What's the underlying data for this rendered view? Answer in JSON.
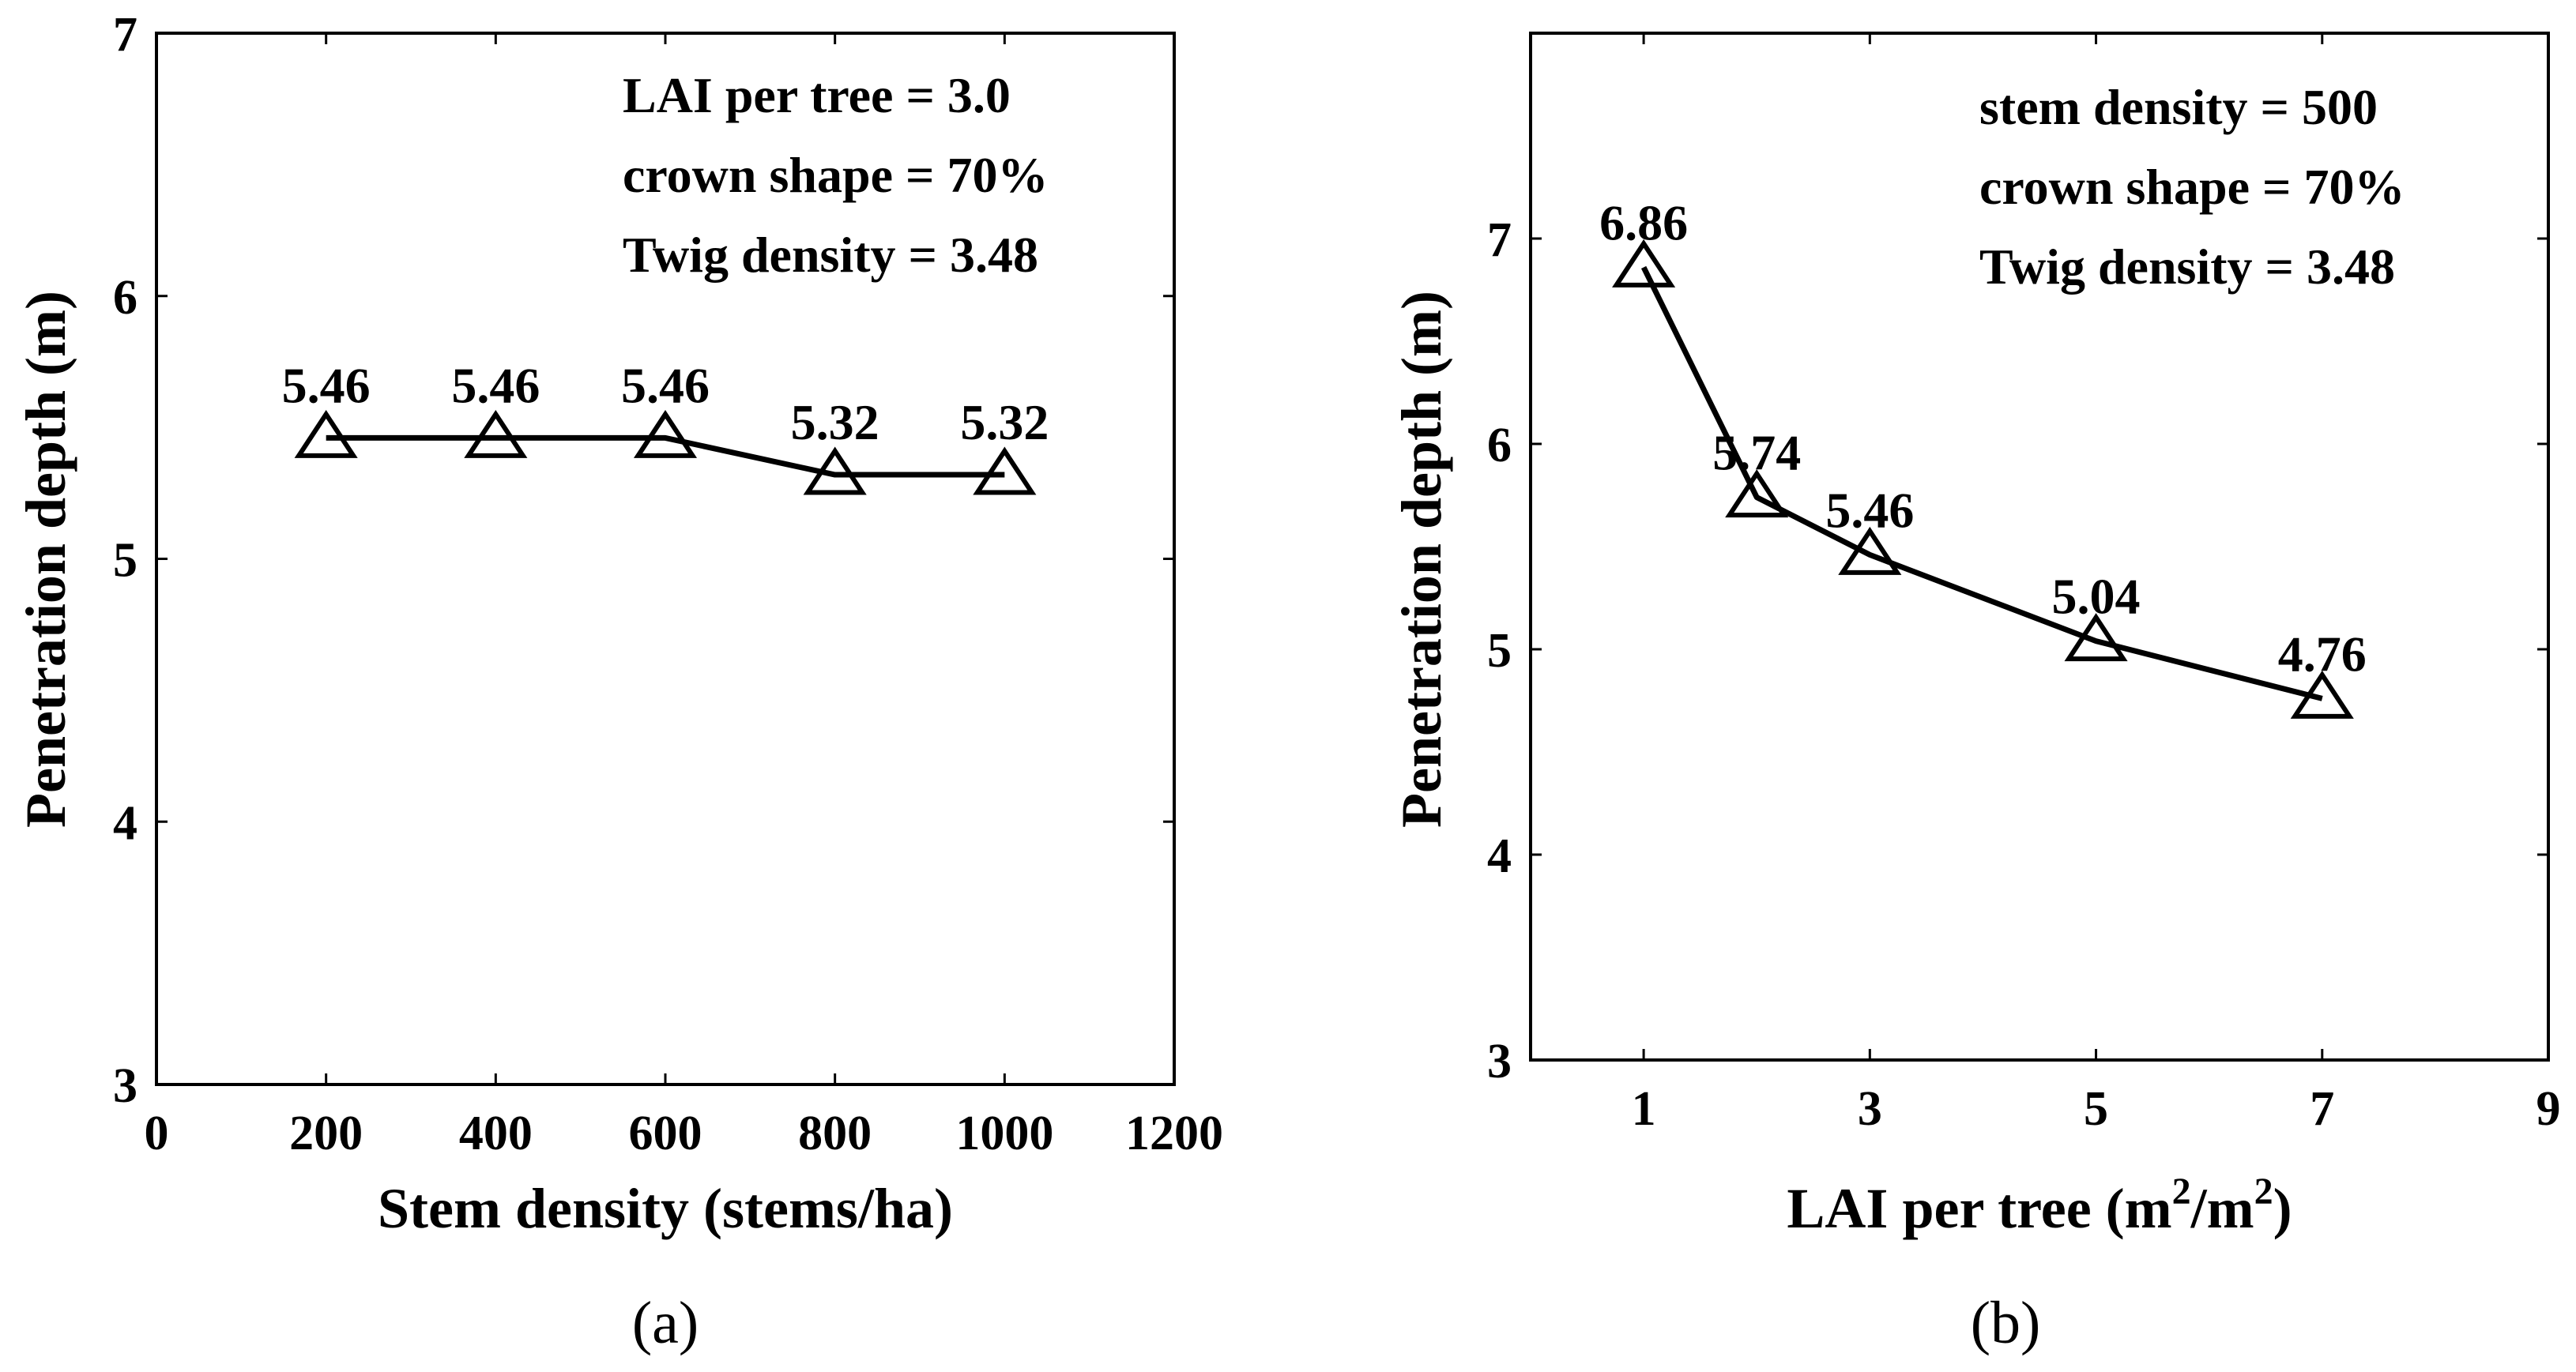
{
  "chart_data": [
    {
      "type": "line",
      "panel_label": "(a)",
      "x": [
        200,
        400,
        600,
        800,
        1000
      ],
      "y": [
        5.46,
        5.46,
        5.46,
        5.32,
        5.32
      ],
      "point_labels": [
        "5.46",
        "5.46",
        "5.46",
        "5.32",
        "5.32"
      ],
      "marker": "triangle",
      "xlabel": "Stem density (stems/ha)",
      "ylabel": "Penetration depth (m)",
      "xlim": [
        0,
        1200
      ],
      "ylim": [
        3,
        7
      ],
      "xticks": [
        0,
        200,
        400,
        600,
        800,
        1000,
        1200
      ],
      "yticks": [
        3,
        4,
        5,
        6,
        7
      ],
      "annotations": [
        "LAI per tree = 3.0",
        "crown shape = 70%",
        "Twig density = 3.48"
      ]
    },
    {
      "type": "line",
      "panel_label": "(b)",
      "x": [
        1,
        2,
        3,
        5,
        7
      ],
      "y": [
        6.86,
        5.74,
        5.46,
        5.04,
        4.76
      ],
      "point_labels": [
        "6.86",
        "5.74",
        "5.46",
        "5.04",
        "4.76"
      ],
      "marker": "triangle",
      "xlabel_main": "LAI per tree (m",
      "xlabel_sup1": "2",
      "xlabel_mid": "/m",
      "xlabel_sup2": "2",
      "xlabel_end": ")",
      "ylabel": "Penetration depth (m)",
      "xlim": [
        0,
        9
      ],
      "ylim": [
        3,
        8
      ],
      "xticks": [
        1,
        3,
        5,
        7,
        9
      ],
      "yticks": [
        3,
        4,
        5,
        6,
        7
      ],
      "annotations": [
        "stem density = 500",
        "crown shape = 70%",
        "Twig density = 3.48"
      ]
    }
  ]
}
